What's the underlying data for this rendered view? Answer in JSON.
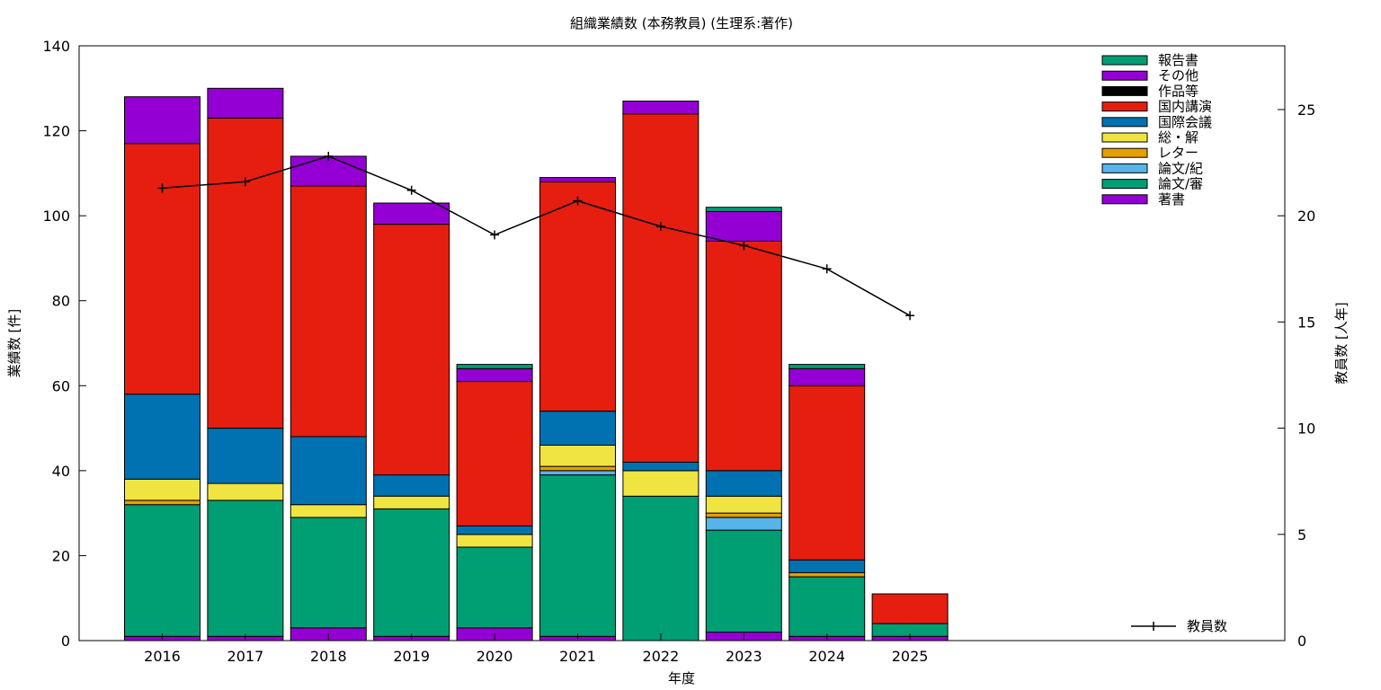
{
  "chart_data": {
    "type": "bar",
    "title": "組織業績数 (本務教員) (生理系:著作)",
    "xlabel": "年度",
    "ylabel": "業績数 [件]",
    "y2label": "教員数 [人年]",
    "categories": [
      "2016",
      "2017",
      "2018",
      "2019",
      "2020",
      "2021",
      "2022",
      "2023",
      "2024",
      "2025"
    ],
    "ylim": [
      0,
      140
    ],
    "y2lim": [
      0,
      28
    ],
    "yticks": [
      0,
      20,
      40,
      60,
      80,
      100,
      120,
      140
    ],
    "y2ticks": [
      0,
      5,
      10,
      15,
      20,
      25
    ],
    "stacked": true,
    "legend_position": "top-right",
    "series": [
      {
        "name": "著書",
        "color": "#9400d3",
        "values": [
          1,
          1,
          3,
          1,
          3,
          1,
          0,
          2,
          1,
          1
        ]
      },
      {
        "name": "論文/審",
        "color": "#009e73",
        "values": [
          31,
          32,
          26,
          30,
          19,
          38,
          34,
          24,
          14,
          3
        ]
      },
      {
        "name": "論文/紀",
        "color": "#56b4e9",
        "values": [
          0,
          0,
          0,
          0,
          0,
          1,
          0,
          3,
          0,
          0
        ]
      },
      {
        "name": "レター",
        "color": "#e69f00",
        "values": [
          1,
          0,
          0,
          0,
          0,
          1,
          0,
          1,
          1,
          0
        ]
      },
      {
        "name": "総・解",
        "color": "#f0e442",
        "values": [
          5,
          4,
          3,
          3,
          3,
          5,
          6,
          4,
          0,
          0
        ]
      },
      {
        "name": "国際会議",
        "color": "#0072b2",
        "values": [
          20,
          13,
          16,
          5,
          2,
          8,
          2,
          6,
          3,
          0
        ]
      },
      {
        "name": "国内講演",
        "color": "#e51e10",
        "values": [
          59,
          73,
          59,
          59,
          34,
          54,
          82,
          54,
          41,
          7
        ]
      },
      {
        "name": "作品等",
        "color": "#000000",
        "values": [
          0,
          0,
          0,
          0,
          0,
          0,
          0,
          0,
          0,
          0
        ]
      },
      {
        "name": "その他",
        "color": "#9400d3",
        "values": [
          11,
          7,
          7,
          5,
          3,
          1,
          3,
          7,
          4,
          0
        ]
      },
      {
        "name": "報告書",
        "color": "#009e73",
        "values": [
          0,
          0,
          0,
          0,
          1,
          0,
          0,
          1,
          1,
          0
        ]
      }
    ],
    "line_series": {
      "name": "教員数",
      "axis": "y2",
      "color": "#000000",
      "values": [
        21.3,
        21.6,
        22.8,
        21.2,
        19.1,
        20.7,
        19.5,
        18.6,
        17.5,
        15.3
      ]
    }
  }
}
